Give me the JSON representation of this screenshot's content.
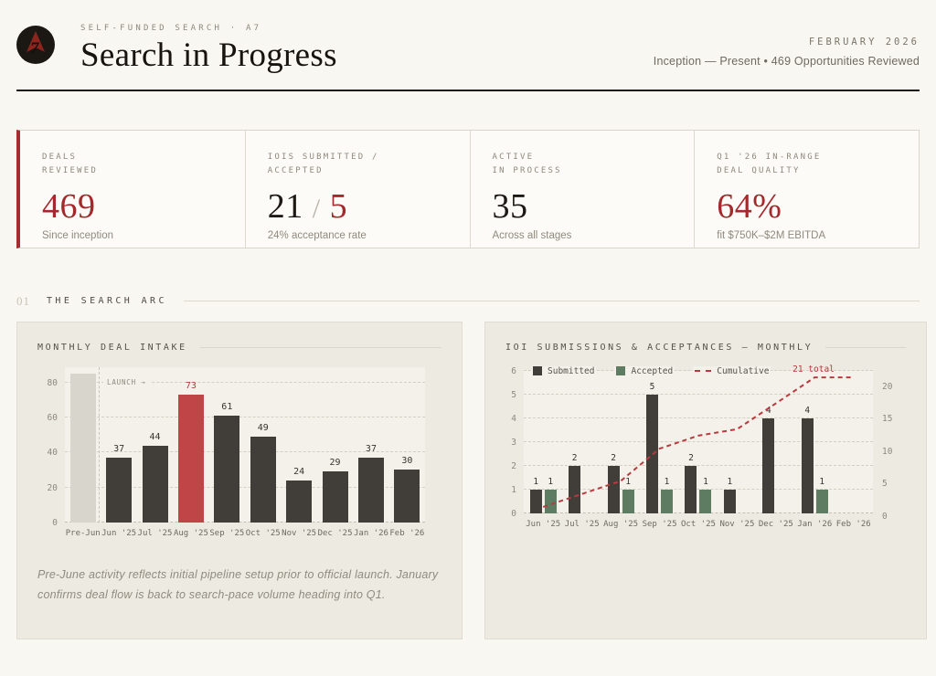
{
  "header": {
    "eyebrow": "SELF-FUNDED SEARCH · A7",
    "title": "Search in Progress",
    "date": "FEBRUARY 2026",
    "subtitle": "Inception — Present • 469 Opportunities Reviewed",
    "logo_monogram": "7"
  },
  "stats": [
    {
      "label_line1": "DEALS",
      "label_line2": "REVIEWED",
      "value": "469",
      "sub": "Since inception"
    },
    {
      "label_line1": "IOIS SUBMITTED /",
      "label_line2": "ACCEPTED",
      "value_a": "21",
      "value_sep": "/",
      "value_b": "5",
      "sub": "24% acceptance rate"
    },
    {
      "label_line1": "ACTIVE",
      "label_line2": "IN PROCESS",
      "value": "35",
      "sub": "Across all stages"
    },
    {
      "label_line1": "Q1 '26 IN-RANGE",
      "label_line2": "DEAL QUALITY",
      "value": "64%",
      "sub": "fit $750K–$2M EBITDA"
    }
  ],
  "section": {
    "number": "01",
    "title": "THE SEARCH ARC"
  },
  "colors": {
    "accent_red": "#a52c30",
    "bar_dark": "#413e3a",
    "bar_red": "#bf4547",
    "bar_prelaunch": "#d8d5cc",
    "accepted_green": "#5e7c61",
    "cumulative_red": "#b9393e",
    "value_label_dark": "#37332e",
    "value_label_red": "#b13a3d",
    "value_label_gray": "#8f897d"
  },
  "chart_data": [
    {
      "type": "bar",
      "title": "MONTHLY DEAL INTAKE",
      "categories": [
        "Pre-Jun",
        "Jun '25",
        "Jul '25",
        "Aug '25",
        "Sep '25",
        "Oct '25",
        "Nov '25",
        "Dec '25",
        "Jan '26",
        "Feb '26"
      ],
      "values": [
        85,
        37,
        44,
        73,
        61,
        49,
        24,
        29,
        37,
        30
      ],
      "yticks": [
        0,
        20,
        40,
        60,
        80
      ],
      "ylim": [
        0,
        89
      ],
      "highlight_index": 3,
      "prelaunch_index": 0,
      "annotation": "LAUNCH →",
      "grid": "dashed",
      "footnote": "Pre-June activity reflects initial pipeline setup prior to official launch. January confirms deal flow is back to search-pace volume heading into Q1."
    },
    {
      "type": "bar+line",
      "title": "IOI SUBMISSIONS & ACCEPTANCES — MONTHLY",
      "categories": [
        "Jun '25",
        "Jul '25",
        "Aug '25",
        "Sep '25",
        "Oct '25",
        "Nov '25",
        "Dec '25",
        "Jan '26",
        "Feb '26"
      ],
      "series": [
        {
          "name": "Submitted",
          "type": "bar",
          "values": [
            1,
            2,
            2,
            5,
            2,
            1,
            4,
            4,
            0
          ]
        },
        {
          "name": "Accepted",
          "type": "bar",
          "values": [
            1,
            0,
            1,
            1,
            1,
            0,
            0,
            1,
            0
          ]
        },
        {
          "name": "Cumulative",
          "type": "line",
          "axis": "right",
          "values": [
            1,
            3,
            5,
            10,
            12,
            13,
            17,
            21,
            21
          ]
        }
      ],
      "left_yticks": [
        0,
        1,
        2,
        3,
        4,
        5,
        6
      ],
      "left_ylim": [
        0,
        6
      ],
      "right_yticks": [
        0,
        5,
        10,
        15,
        20
      ],
      "right_ylim": [
        0,
        22
      ],
      "annotation": "21 total",
      "legend_position": "top-left",
      "grid": "dashed"
    }
  ]
}
